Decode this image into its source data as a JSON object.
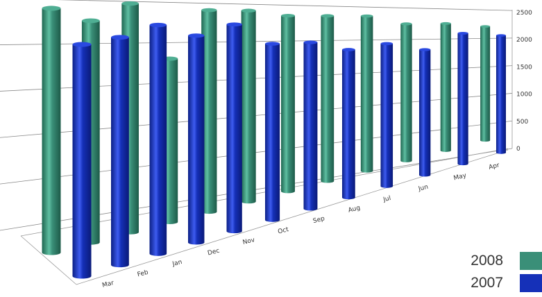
{
  "chart_data": {
    "type": "bar",
    "style": "3d-cylinder",
    "categories": [
      "Mar",
      "Feb",
      "Jan",
      "Dec",
      "Nov",
      "Oct",
      "Sep",
      "Aug",
      "Jul",
      "Jun",
      "May",
      "Apr"
    ],
    "series": [
      {
        "name": "2008",
        "color": "#3a8f78",
        "values": [
          1950,
          1850,
          2000,
          1500,
          1950,
          1950,
          1900,
          1900,
          1900,
          1800,
          1800,
          1750
        ]
      },
      {
        "name": "2007",
        "color": "#1530b8",
        "values": [
          1850,
          1900,
          2000,
          1900,
          2000,
          1800,
          1800,
          1700,
          1750,
          1650,
          1850,
          1800
        ]
      }
    ],
    "ylim": [
      0,
      2500
    ],
    "yticks": [
      0,
      500,
      1000,
      1500,
      2000,
      2500
    ],
    "grid": true,
    "legend": "bottom-right"
  }
}
